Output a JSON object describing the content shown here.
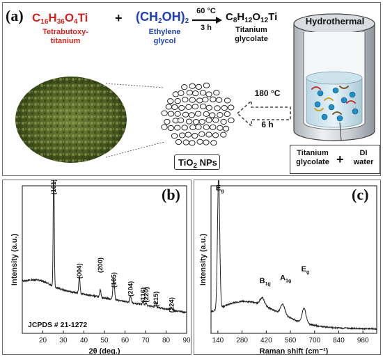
{
  "panel_a": {
    "label": "(a)",
    "reactant1_formula": "C16H36O4Ti",
    "reactant1_name_1": "Tetrabutoxy-",
    "reactant1_name_2": "titanium",
    "plus": "+",
    "reactant2_formula": "(CH2OH)2",
    "reactant2_name_1": "Ethylene",
    "reactant2_name_2": "glycol",
    "condition_temp": "60 °C",
    "condition_time": "3 h",
    "product_formula": "C8H12O12Ti",
    "product_name_1": "Titanium",
    "product_name_2": "glycolate",
    "vessel_label": "Hydrothermal",
    "step2_temp": "180 °C",
    "step2_time": "6 h",
    "nps_label": "TiO2 NPs",
    "mix_label_1a": "Titanium",
    "mix_label_1b": "glycolate",
    "mix_plus": "+",
    "mix_label_2a": "DI",
    "mix_label_2b": "water"
  },
  "chart_data": [
    {
      "type": "line",
      "panel": "(b)",
      "xlabel": "2θ (deg.)",
      "ylabel": "Intensity (a.u.)",
      "xlim": [
        10,
        90
      ],
      "xticks": [
        20,
        30,
        40,
        50,
        60,
        70,
        80,
        90
      ],
      "annotation": "JCPDS # 21-1272",
      "peaks": [
        {
          "x": 25.3,
          "label": "(101)"
        },
        {
          "x": 37.8,
          "label": "(004)"
        },
        {
          "x": 48.0,
          "label": "(200)"
        },
        {
          "x": 54.5,
          "label": "(105)"
        },
        {
          "x": 62.7,
          "label": "(204)"
        },
        {
          "x": 68.8,
          "label": "(116)"
        },
        {
          "x": 70.3,
          "label": "(220)"
        },
        {
          "x": 75.0,
          "label": "(215)"
        },
        {
          "x": 82.7,
          "label": "(224)"
        }
      ]
    },
    {
      "type": "line",
      "panel": "(c)",
      "xlabel": "Raman shift (cm⁻¹)",
      "ylabel": "Intensity (a.u.)",
      "xlim": [
        100,
        1060
      ],
      "xticks": [
        140,
        280,
        420,
        560,
        700,
        840,
        980
      ],
      "peaks": [
        {
          "x": 144,
          "label": "E",
          "sub": "g"
        },
        {
          "x": 397,
          "label": "B",
          "sub": "1g"
        },
        {
          "x": 516,
          "label": "A",
          "sub": "1g"
        },
        {
          "x": 639,
          "label": "E",
          "sub": "g"
        }
      ]
    }
  ]
}
